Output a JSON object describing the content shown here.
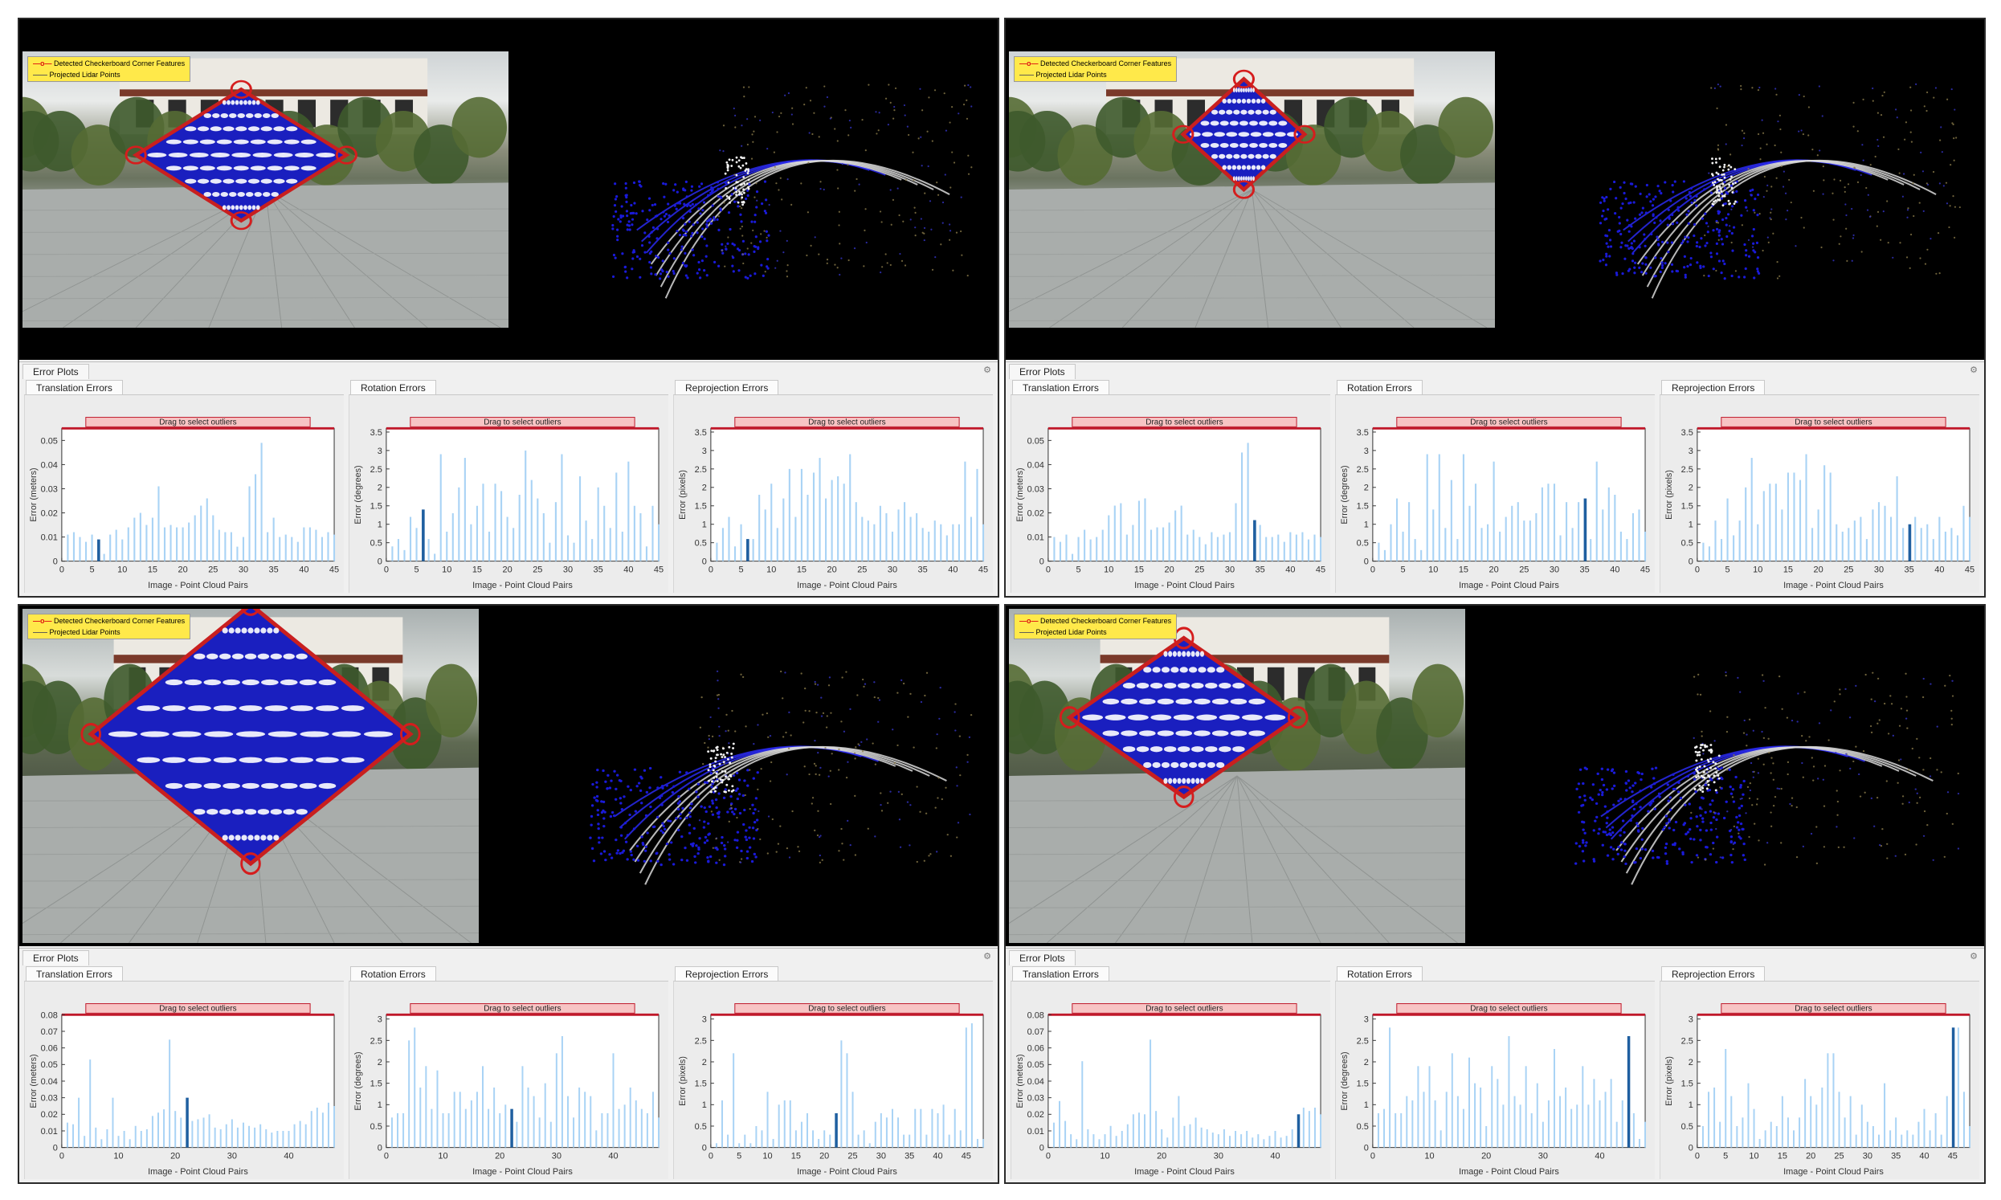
{
  "legend": {
    "corner_label": "Detected Checkerboard Corner Features",
    "lidar_label": "Projected Lidar Points"
  },
  "panel_title": "Error Plots",
  "drag_label": "Drag to select outliers",
  "xlabel": "Image - Point Cloud Pairs",
  "colors": {
    "bar": "#a9d3f5",
    "bar_selected": "#1f5fa0",
    "drag_fill": "#f7c4c4",
    "drag_border": "#c0182a",
    "lidar_blue": "#1a1ad8"
  },
  "quadrants": [
    {
      "name": "top-left",
      "charts": [
        {
          "title": "Translation Errors",
          "ylabel": "Error (meters)",
          "type": "bar",
          "xlim": [
            0,
            45
          ],
          "ylim": [
            0,
            0.055
          ],
          "xticks": [
            0,
            5,
            10,
            15,
            20,
            25,
            30,
            35,
            40,
            45
          ],
          "yticks": [
            0,
            0.01,
            0.02,
            0.03,
            0.04,
            0.05
          ],
          "selected": 6,
          "values": [
            0.011,
            0.012,
            0.01,
            0.008,
            0.011,
            0.009,
            0.003,
            0.011,
            0.013,
            0.009,
            0.014,
            0.018,
            0.02,
            0.015,
            0.018,
            0.031,
            0.014,
            0.015,
            0.014,
            0.014,
            0.016,
            0.019,
            0.023,
            0.026,
            0.019,
            0.013,
            0.012,
            0.012,
            0.006,
            0.01,
            0.031,
            0.036,
            0.049,
            0.012,
            0.018,
            0.01,
            0.011,
            0.01,
            0.008,
            0.014,
            0.014,
            0.013,
            0.01,
            0.012,
            0.011
          ]
        },
        {
          "title": "Rotation Errors",
          "ylabel": "Error (degrees)",
          "type": "bar",
          "xlim": [
            0,
            45
          ],
          "ylim": [
            0,
            3.6
          ],
          "xticks": [
            0,
            5,
            10,
            15,
            20,
            25,
            30,
            35,
            40,
            45
          ],
          "yticks": [
            0,
            0.5,
            1,
            1.5,
            2,
            2.5,
            3,
            3.5
          ],
          "selected": 6,
          "values": [
            0.4,
            0.6,
            0.3,
            1.2,
            0.9,
            1.4,
            0.6,
            0.2,
            2.9,
            0.8,
            1.3,
            2.0,
            2.8,
            1.0,
            1.5,
            2.1,
            0.8,
            2.1,
            1.9,
            1.2,
            0.9,
            1.8,
            3.0,
            2.2,
            1.7,
            1.3,
            0.5,
            1.6,
            2.9,
            0.7,
            0.5,
            2.3,
            1.1,
            0.6,
            2.0,
            1.5,
            0.9,
            2.4,
            0.8,
            2.7,
            1.5,
            1.3,
            0.4,
            1.5,
            1.0
          ]
        },
        {
          "title": "Reprojection Errors",
          "ylabel": "Error (pixels)",
          "type": "bar",
          "xlim": [
            0,
            45
          ],
          "ylim": [
            0,
            3.6
          ],
          "xticks": [
            0,
            5,
            10,
            15,
            20,
            25,
            30,
            35,
            40,
            45
          ],
          "yticks": [
            0,
            0.5,
            1,
            1.5,
            2,
            2.5,
            3,
            3.5
          ],
          "selected": 6,
          "values": [
            0.5,
            0.9,
            1.2,
            0.4,
            1.0,
            0.6,
            0.6,
            1.8,
            1.4,
            2.1,
            0.9,
            1.7,
            2.5,
            1.2,
            2.5,
            1.8,
            2.4,
            2.8,
            1.7,
            2.2,
            2.3,
            2.1,
            2.9,
            1.6,
            1.2,
            1.1,
            1.0,
            1.5,
            1.3,
            0.8,
            1.4,
            1.6,
            1.2,
            1.3,
            0.9,
            0.8,
            1.1,
            1.0,
            0.7,
            1.0,
            1.0,
            2.7,
            1.2,
            2.5,
            1.0
          ]
        }
      ]
    },
    {
      "name": "top-right",
      "charts": [
        {
          "title": "Translation Errors",
          "ylabel": "Error (meters)",
          "type": "bar",
          "xlim": [
            0,
            45
          ],
          "ylim": [
            0,
            0.055
          ],
          "xticks": [
            0,
            5,
            10,
            15,
            20,
            25,
            30,
            35,
            40,
            45
          ],
          "yticks": [
            0,
            0.01,
            0.02,
            0.03,
            0.04,
            0.05
          ],
          "selected": 34,
          "values": [
            0.01,
            0.008,
            0.011,
            0.003,
            0.01,
            0.013,
            0.009,
            0.01,
            0.013,
            0.019,
            0.023,
            0.024,
            0.011,
            0.015,
            0.025,
            0.026,
            0.013,
            0.014,
            0.014,
            0.016,
            0.021,
            0.023,
            0.011,
            0.013,
            0.01,
            0.007,
            0.012,
            0.01,
            0.011,
            0.012,
            0.024,
            0.045,
            0.049,
            0.017,
            0.015,
            0.01,
            0.01,
            0.011,
            0.008,
            0.012,
            0.011,
            0.012,
            0.009,
            0.011,
            0.01
          ]
        },
        {
          "title": "Rotation Errors",
          "ylabel": "Error (degrees)",
          "type": "bar",
          "xlim": [
            0,
            45
          ],
          "ylim": [
            0,
            3.6
          ],
          "xticks": [
            0,
            5,
            10,
            15,
            20,
            25,
            30,
            35,
            40,
            45
          ],
          "yticks": [
            0,
            0.5,
            1,
            1.5,
            2,
            2.5,
            3,
            3.5
          ],
          "selected": 35,
          "values": [
            0.5,
            0.3,
            1.0,
            1.7,
            0.8,
            1.6,
            0.6,
            0.3,
            2.9,
            1.4,
            2.9,
            0.9,
            2.2,
            0.6,
            2.9,
            1.5,
            2.1,
            0.9,
            1.0,
            2.7,
            0.8,
            1.2,
            1.5,
            1.6,
            1.1,
            1.1,
            1.3,
            2.0,
            2.1,
            2.1,
            0.7,
            1.6,
            0.9,
            1.6,
            1.7,
            0.6,
            2.7,
            1.4,
            2.0,
            1.8,
            0.8,
            0.6,
            1.3,
            1.4,
            0.8
          ]
        },
        {
          "title": "Reprojection Errors",
          "ylabel": "Error (pixels)",
          "type": "bar",
          "xlim": [
            0,
            45
          ],
          "ylim": [
            0,
            3.6
          ],
          "xticks": [
            0,
            5,
            10,
            15,
            20,
            25,
            30,
            35,
            40,
            45
          ],
          "yticks": [
            0,
            0.5,
            1,
            1.5,
            2,
            2.5,
            3,
            3.5
          ],
          "selected": 35,
          "values": [
            0.5,
            0.4,
            1.1,
            0.6,
            1.7,
            0.7,
            1.1,
            2.0,
            2.8,
            1.0,
            1.9,
            2.1,
            2.1,
            1.4,
            2.4,
            2.4,
            2.2,
            2.9,
            0.9,
            1.4,
            2.6,
            2.4,
            1.0,
            0.8,
            0.9,
            1.1,
            1.2,
            0.6,
            1.4,
            1.6,
            1.5,
            1.2,
            2.3,
            0.9,
            1.0,
            1.2,
            0.9,
            1.0,
            0.6,
            1.2,
            0.8,
            0.9,
            0.7,
            1.5,
            1.2
          ]
        }
      ]
    },
    {
      "name": "bottom-left",
      "charts": [
        {
          "title": "Translation Errors",
          "ylabel": "Error (meters)",
          "type": "bar",
          "xlim": [
            0,
            48
          ],
          "ylim": [
            0,
            0.08
          ],
          "xticks": [
            0,
            10,
            20,
            30,
            40
          ],
          "yticks": [
            0,
            0.01,
            0.02,
            0.03,
            0.04,
            0.05,
            0.06,
            0.07,
            0.08
          ],
          "selected": 22,
          "values": [
            0.015,
            0.014,
            0.03,
            0.007,
            0.053,
            0.012,
            0.005,
            0.011,
            0.03,
            0.007,
            0.01,
            0.005,
            0.013,
            0.01,
            0.011,
            0.019,
            0.021,
            0.023,
            0.065,
            0.022,
            0.018,
            0.03,
            0.016,
            0.017,
            0.018,
            0.02,
            0.012,
            0.011,
            0.014,
            0.017,
            0.012,
            0.015,
            0.013,
            0.012,
            0.014,
            0.011,
            0.009,
            0.01,
            0.01,
            0.01,
            0.014,
            0.016,
            0.014,
            0.022,
            0.024,
            0.021,
            0.027,
            0.025
          ]
        },
        {
          "title": "Rotation Errors",
          "ylabel": "Error (degrees)",
          "type": "bar",
          "xlim": [
            0,
            48
          ],
          "ylim": [
            0,
            3.1
          ],
          "xticks": [
            0,
            10,
            20,
            30,
            40
          ],
          "yticks": [
            0,
            0.5,
            1,
            1.5,
            2,
            2.5,
            3
          ],
          "selected": 22,
          "values": [
            0.7,
            0.8,
            0.8,
            2.5,
            2.8,
            1.4,
            1.9,
            0.9,
            1.8,
            0.8,
            0.8,
            1.3,
            1.3,
            0.9,
            1.1,
            1.3,
            1.9,
            0.9,
            1.4,
            0.8,
            1.0,
            0.9,
            0.6,
            1.9,
            1.4,
            1.2,
            0.7,
            1.5,
            0.6,
            2.2,
            2.6,
            1.2,
            0.7,
            1.4,
            1.3,
            1.2,
            0.4,
            0.8,
            0.8,
            2.2,
            0.9,
            1.0,
            1.4,
            1.1,
            0.9,
            0.8,
            1.3,
            0.7
          ]
        },
        {
          "title": "Reprojection Errors",
          "ylabel": "Error (pixels)",
          "type": "bar",
          "xlim": [
            0,
            48
          ],
          "ylim": [
            0,
            3.1
          ],
          "xticks": [
            0,
            5,
            10,
            15,
            20,
            25,
            30,
            35,
            40,
            45
          ],
          "yticks": [
            0,
            0.5,
            1,
            1.5,
            2,
            2.5,
            3
          ],
          "selected": 22,
          "values": [
            0.1,
            1.1,
            0.3,
            2.2,
            0.1,
            0.3,
            0.1,
            0.5,
            0.4,
            1.3,
            0.2,
            1.0,
            1.1,
            1.1,
            0.4,
            0.6,
            0.8,
            0.4,
            0.2,
            0.4,
            0.3,
            0.8,
            2.5,
            2.2,
            1.3,
            0.3,
            0.4,
            0.1,
            0.6,
            0.8,
            0.7,
            0.9,
            0.7,
            0.3,
            0.3,
            0.9,
            0.9,
            0.3,
            0.9,
            0.8,
            1.0,
            0.3,
            0.9,
            0.4,
            2.8,
            2.9,
            0.2,
            0.2
          ]
        }
      ]
    },
    {
      "name": "bottom-right",
      "charts": [
        {
          "title": "Translation Errors",
          "ylabel": "Error (meters)",
          "type": "bar",
          "xlim": [
            0,
            48
          ],
          "ylim": [
            0,
            0.08
          ],
          "xticks": [
            0,
            10,
            20,
            30,
            40
          ],
          "yticks": [
            0,
            0.01,
            0.02,
            0.03,
            0.04,
            0.05,
            0.06,
            0.07,
            0.08
          ],
          "selected": 44,
          "values": [
            0.015,
            0.028,
            0.016,
            0.008,
            0.005,
            0.052,
            0.011,
            0.008,
            0.005,
            0.008,
            0.013,
            0.007,
            0.01,
            0.014,
            0.02,
            0.021,
            0.02,
            0.065,
            0.022,
            0.011,
            0.006,
            0.018,
            0.031,
            0.013,
            0.014,
            0.018,
            0.012,
            0.011,
            0.009,
            0.008,
            0.011,
            0.007,
            0.01,
            0.008,
            0.01,
            0.006,
            0.008,
            0.005,
            0.007,
            0.01,
            0.006,
            0.007,
            0.011,
            0.02,
            0.024,
            0.022,
            0.024,
            0.02
          ]
        },
        {
          "title": "Rotation Errors",
          "ylabel": "Error (degrees)",
          "type": "bar",
          "xlim": [
            0,
            48
          ],
          "ylim": [
            0,
            3.1
          ],
          "xticks": [
            0,
            10,
            20,
            30,
            40
          ],
          "yticks": [
            0,
            0.5,
            1,
            1.5,
            2,
            2.5,
            3
          ],
          "selected": 45,
          "values": [
            0.8,
            0.9,
            2.8,
            0.8,
            0.8,
            1.2,
            1.1,
            1.9,
            1.3,
            1.9,
            1.1,
            0.4,
            1.3,
            2.2,
            1.2,
            0.9,
            2.1,
            1.5,
            1.4,
            0.5,
            1.9,
            1.6,
            1.0,
            2.6,
            1.2,
            1.0,
            1.9,
            0.8,
            1.5,
            0.6,
            1.1,
            2.3,
            1.2,
            1.4,
            0.9,
            1.0,
            1.9,
            1.0,
            1.6,
            1.1,
            1.3,
            1.6,
            0.6,
            1.1,
            2.6,
            0.8,
            0.2,
            0.6
          ]
        },
        {
          "title": "Reprojection Errors",
          "ylabel": "Error (pixels)",
          "type": "bar",
          "xlim": [
            0,
            48
          ],
          "ylim": [
            0,
            3.1
          ],
          "xticks": [
            0,
            5,
            10,
            15,
            20,
            25,
            30,
            35,
            40,
            45
          ],
          "yticks": [
            0,
            0.5,
            1,
            1.5,
            2,
            2.5,
            3
          ],
          "selected": 45,
          "values": [
            0.5,
            1.3,
            1.4,
            0.6,
            2.3,
            1.2,
            0.5,
            0.7,
            1.5,
            0.9,
            0.2,
            0.4,
            0.6,
            0.5,
            1.2,
            0.7,
            0.4,
            0.7,
            1.6,
            1.2,
            1.0,
            1.4,
            2.2,
            2.2,
            1.3,
            0.7,
            1.2,
            0.3,
            1.0,
            0.6,
            0.5,
            0.3,
            1.5,
            0.4,
            0.7,
            0.3,
            0.4,
            0.3,
            0.6,
            0.9,
            0.4,
            0.8,
            0.3,
            1.2,
            2.8,
            2.8,
            1.3,
            0.5
          ]
        }
      ]
    }
  ]
}
